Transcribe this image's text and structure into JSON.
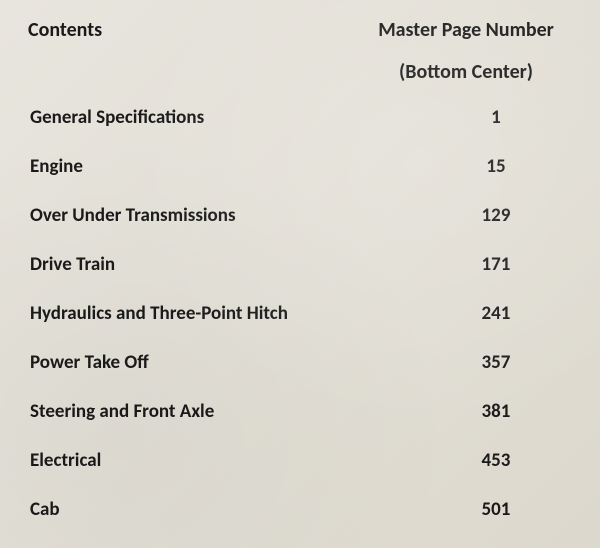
{
  "header": {
    "contents_title": "Contents",
    "master_page_title": "Master Page Number",
    "bottom_center_label": "(Bottom Center)"
  },
  "toc": {
    "type": "table",
    "columns": [
      "label",
      "page"
    ],
    "label_fontsize": 19,
    "label_fontweight": "bold",
    "page_fontsize": 19,
    "page_fontweight": "bold",
    "text_color": "#1a1a1a",
    "background_color": "#e4e0d6",
    "row_spacing": 26,
    "items": [
      {
        "label": "General Specifications",
        "page": "1"
      },
      {
        "label": "Engine",
        "page": "15"
      },
      {
        "label": "Over Under Transmissions",
        "page": "129"
      },
      {
        "label": "Drive Train",
        "page": "171"
      },
      {
        "label": "Hydraulics and Three-Point Hitch",
        "page": "241"
      },
      {
        "label": "Power Take Off",
        "page": "357"
      },
      {
        "label": "Steering and Front Axle",
        "page": "381"
      },
      {
        "label": "Electrical",
        "page": "453"
      },
      {
        "label": "Cab",
        "page": "501"
      }
    ]
  }
}
